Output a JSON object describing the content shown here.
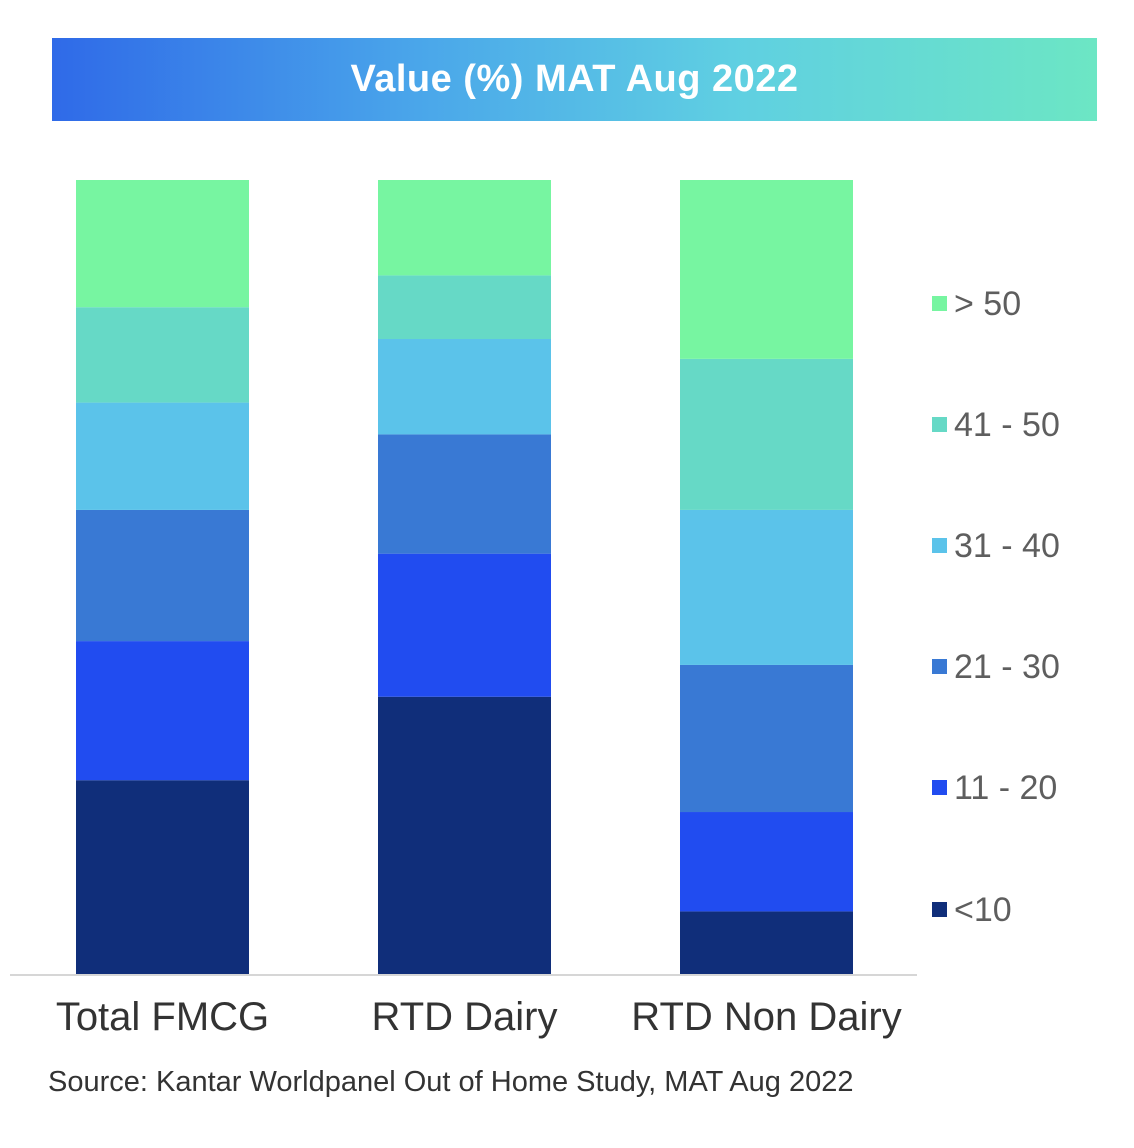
{
  "chart_data": {
    "type": "bar",
    "stacked": true,
    "title": "Value (%) MAT Aug 2022",
    "categories": [
      "Total FMCG",
      "RTD Dairy",
      "RTD Non Dairy"
    ],
    "series": [
      {
        "name": "<10",
        "color": "#102e7a",
        "values": [
          24.5,
          35,
          8
        ]
      },
      {
        "name": "11 - 20",
        "color": "#214cf0",
        "values": [
          17.5,
          18,
          12.5
        ]
      },
      {
        "name": "21 - 30",
        "color": "#3979d4",
        "values": [
          16.5,
          15,
          18.5
        ]
      },
      {
        "name": "31 - 40",
        "color": "#5bc3ea",
        "values": [
          13.5,
          12,
          19.5
        ]
      },
      {
        "name": "41 - 50",
        "color": "#66d9c6",
        "values": [
          12,
          8,
          19
        ]
      },
      {
        "name": "> 50",
        "color": "#77f5a1",
        "values": [
          16,
          12,
          22.5
        ]
      }
    ],
    "ylim": [
      0,
      100
    ],
    "legend_position": "right",
    "grid": false
  },
  "source": "Source: Kantar Worldpanel Out of Home Study, MAT Aug 2022"
}
